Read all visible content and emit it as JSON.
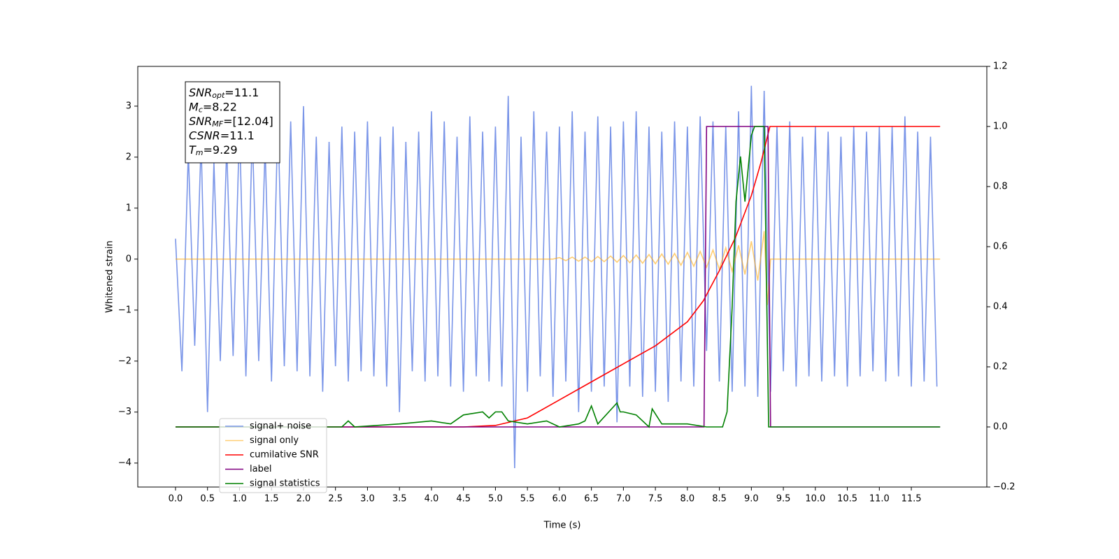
{
  "chart_data": {
    "type": "line",
    "xlabel": "Time (s)",
    "ylabel": "Whitened strain",
    "xlim": [
      -0.59,
      12.68
    ],
    "ylim": [
      -4.47,
      3.78
    ],
    "y2lim": [
      -0.2,
      1.2
    ],
    "xticks": [
      {
        "value": 0,
        "label": "0.0"
      },
      0.5,
      {
        "value": 1,
        "label": "1.0"
      },
      1.5,
      {
        "value": 2,
        "label": "2.0"
      },
      2.5,
      {
        "value": 3,
        "label": "3.0"
      },
      3.5,
      {
        "value": 4,
        "label": "4.0"
      },
      4.5,
      {
        "value": 5,
        "label": "5.0"
      },
      5.5,
      {
        "value": 6,
        "label": "6.0"
      },
      6.5,
      {
        "value": 7,
        "label": "7.0"
      },
      7.5,
      {
        "value": 8,
        "label": "8.0"
      },
      8.5,
      {
        "value": 9,
        "label": "9.0"
      },
      9.5,
      {
        "value": 10,
        "label": "10.0"
      },
      10.5,
      {
        "value": 11,
        "label": "11.0"
      },
      11.5
    ],
    "yticks": [
      {
        "value": -4,
        "label": "−4"
      },
      {
        "value": -3,
        "label": "−3"
      },
      {
        "value": -2,
        "label": "−2"
      },
      {
        "value": -1,
        "label": "−1"
      },
      0,
      1,
      2,
      3
    ],
    "y2ticks": [
      {
        "value": -0.2,
        "label": "−0.2"
      },
      {
        "value": 0,
        "label": "0.0"
      },
      0.2,
      0.4,
      0.6,
      0.8,
      {
        "value": 1,
        "label": "1.0"
      },
      1.2
    ],
    "legend": "lower left",
    "annotations": [
      {
        "symbol": "SNR",
        "subscript": "opt",
        "text": "=11.1"
      },
      {
        "symbol": "M",
        "subscript": "c",
        "text": "=8.22"
      },
      {
        "symbol": "SNR",
        "subscript": "MF",
        "text": "=[12.04]"
      },
      {
        "symbol": "CSNR",
        "text": "=11.1"
      },
      {
        "symbol": "T",
        "subscript": "m",
        "text": "=9.29"
      }
    ],
    "series": [
      {
        "name": "signal+ noise",
        "color": "#7a95e8",
        "axis": "y",
        "x": [
          0,
          0.1,
          0.2,
          0.3,
          0.4,
          0.5,
          0.6,
          0.7,
          0.8,
          0.9,
          1,
          1.1,
          1.2,
          1.3,
          1.4,
          1.5,
          1.6,
          1.7,
          1.8,
          1.9,
          2,
          2.1,
          2.2,
          2.3,
          2.4,
          2.5,
          2.6,
          2.7,
          2.8,
          2.9,
          3,
          3.1,
          3.2,
          3.3,
          3.4,
          3.5,
          3.6,
          3.7,
          3.8,
          3.9,
          4,
          4.1,
          4.2,
          4.3,
          4.4,
          4.5,
          4.6,
          4.7,
          4.8,
          4.9,
          5,
          5.1,
          5.2,
          5.3,
          5.4,
          5.5,
          5.6,
          5.7,
          5.8,
          5.9,
          6,
          6.1,
          6.2,
          6.3,
          6.4,
          6.5,
          6.6,
          6.7,
          6.8,
          6.9,
          7,
          7.1,
          7.2,
          7.3,
          7.4,
          7.5,
          7.6,
          7.7,
          7.8,
          7.9,
          8,
          8.1,
          8.2,
          8.3,
          8.4,
          8.5,
          8.6,
          8.7,
          8.8,
          8.9,
          9,
          9.1,
          9.2,
          9.3,
          9.4,
          9.5,
          9.6,
          9.7,
          9.8,
          9.9,
          10,
          10.1,
          10.2,
          10.3,
          10.4,
          10.5,
          10.6,
          10.7,
          10.8,
          10.9,
          11,
          11.1,
          11.2,
          11.3,
          11.4,
          11.5,
          11.6,
          11.7,
          11.8,
          11.9
        ],
        "values": [
          0.4,
          -2.2,
          2.1,
          -1.7,
          2.3,
          -3.0,
          1.9,
          -2.0,
          2.2,
          -1.9,
          2.6,
          -2.3,
          2.5,
          -2.0,
          2.2,
          -2.4,
          2.8,
          -2.1,
          2.7,
          -2.2,
          3.0,
          -2.3,
          2.4,
          -2.6,
          2.3,
          -2.1,
          2.6,
          -2.4,
          2.5,
          -2.2,
          2.7,
          -2.3,
          2.4,
          -2.5,
          2.6,
          -3.0,
          2.3,
          -2.2,
          2.5,
          -2.4,
          2.9,
          -2.3,
          2.7,
          -2.5,
          2.4,
          -2.6,
          2.8,
          -2.3,
          2.5,
          -2.4,
          2.6,
          -2.5,
          3.2,
          -4.1,
          2.4,
          -2.6,
          2.9,
          -2.3,
          2.5,
          -2.7,
          2.6,
          -2.4,
          2.9,
          -3.0,
          2.5,
          -2.6,
          2.8,
          -2.5,
          2.6,
          -3.2,
          2.7,
          -2.5,
          2.9,
          -2.7,
          2.6,
          -2.6,
          2.5,
          -2.8,
          2.7,
          -2.4,
          2.6,
          -2.5,
          2.8,
          -1.8,
          2.7,
          -2.4,
          2.6,
          -2.6,
          2.9,
          -2.5,
          3.4,
          -2.7,
          3.3,
          -2.6,
          2.6,
          -2.2,
          2.7,
          -2.5,
          2.4,
          -2.3,
          2.6,
          -2.4,
          2.5,
          -2.3,
          2.4,
          -2.5,
          2.6,
          -2.3,
          2.5,
          -2.2,
          2.6,
          -2.4,
          2.6,
          -2.3,
          2.8,
          -2.5,
          2.5,
          -2.4,
          2.4,
          -2.5
        ]
      },
      {
        "name": "signal only",
        "color": "#ffa500",
        "axis": "y",
        "x": [
          0,
          5.9,
          6,
          6.1,
          6.2,
          6.3,
          6.4,
          6.5,
          6.6,
          6.7,
          6.8,
          6.9,
          7,
          7.1,
          7.2,
          7.3,
          7.4,
          7.5,
          7.6,
          7.7,
          7.8,
          7.9,
          8,
          8.1,
          8.2,
          8.3,
          8.4,
          8.5,
          8.6,
          8.7,
          8.8,
          8.9,
          9,
          9.1,
          9.2,
          9.25,
          9.3,
          11.95
        ],
        "values": [
          0,
          0,
          0.03,
          -0.03,
          0.04,
          -0.04,
          0.04,
          -0.05,
          0.05,
          -0.05,
          0.06,
          -0.06,
          0.07,
          -0.07,
          0.08,
          -0.08,
          0.09,
          -0.09,
          0.1,
          -0.1,
          0.11,
          -0.12,
          0.13,
          -0.14,
          0.15,
          -0.16,
          0.18,
          -0.2,
          0.22,
          -0.24,
          0.27,
          -0.3,
          0.35,
          -0.42,
          0.55,
          -0.9,
          0,
          0
        ]
      },
      {
        "name": "cumilative SNR",
        "color": "#ff0000",
        "axis": "y2",
        "x": [
          0,
          4.5,
          5,
          5.5,
          6,
          6.5,
          7,
          7.5,
          8,
          8.25,
          8.5,
          8.75,
          9,
          9.15,
          9.29,
          9.3,
          11.95
        ],
        "values": [
          0,
          0,
          0.005,
          0.03,
          0.09,
          0.15,
          0.21,
          0.27,
          0.35,
          0.42,
          0.52,
          0.63,
          0.77,
          0.88,
          1.0,
          1.0,
          1.0
        ]
      },
      {
        "name": "label",
        "color": "#800080",
        "axis": "y2",
        "x": [
          0,
          8.26,
          8.3,
          9.26,
          9.3,
          11.95
        ],
        "values": [
          0,
          0,
          1,
          1,
          0,
          0
        ]
      },
      {
        "name": "signal statistics",
        "color": "#008000",
        "axis": "y2",
        "x": [
          0,
          2.6,
          2.7,
          2.8,
          3.5,
          4.0,
          4.3,
          4.5,
          4.8,
          4.9,
          5.0,
          5.1,
          5.2,
          5.5,
          5.8,
          6.0,
          6.3,
          6.4,
          6.5,
          6.6,
          6.9,
          6.95,
          7.0,
          7.2,
          7.4,
          7.45,
          7.6,
          8.0,
          8.3,
          8.55,
          8.62,
          8.7,
          8.76,
          8.83,
          8.9,
          9.0,
          9.05,
          9.2,
          9.27,
          9.32,
          11.95
        ],
        "values": [
          0,
          0,
          0.02,
          0.0,
          0.01,
          0.02,
          0.01,
          0.04,
          0.05,
          0.03,
          0.05,
          0.05,
          0.02,
          0.01,
          0.02,
          0.0,
          0.01,
          0.02,
          0.07,
          0.01,
          0.08,
          0.05,
          0.05,
          0.04,
          0.0,
          0.06,
          0.01,
          0.01,
          0.0,
          0.0,
          0.05,
          0.4,
          0.75,
          0.9,
          0.75,
          0.97,
          1.0,
          1.0,
          0.0,
          0.0,
          0.0
        ]
      }
    ]
  }
}
